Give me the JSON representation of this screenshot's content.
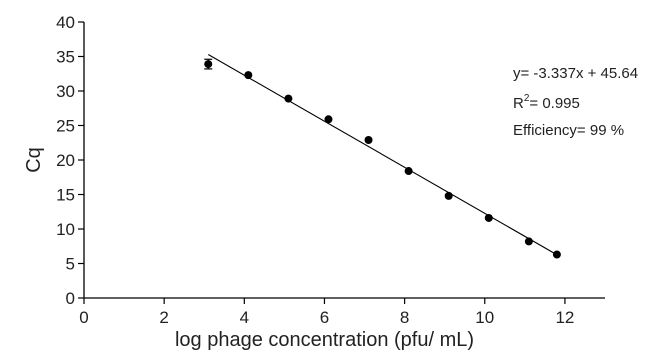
{
  "chart_data": {
    "type": "scatter",
    "title": "",
    "xlabel": "log phage concentration (pfu/ mL)",
    "ylabel": "Cq",
    "xlim": [
      0,
      13
    ],
    "ylim": [
      0,
      40
    ],
    "xticks": [
      "0",
      "2",
      "4",
      "6",
      "8",
      "10",
      "12"
    ],
    "yticks": [
      "0",
      "5",
      "10",
      "15",
      "20",
      "25",
      "30",
      "35",
      "40"
    ],
    "grid": false,
    "x": [
      3.1,
      4.1,
      5.1,
      6.1,
      7.1,
      8.1,
      9.1,
      10.1,
      11.1,
      11.8
    ],
    "y": [
      33.9,
      32.3,
      28.9,
      25.9,
      22.9,
      18.4,
      14.8,
      11.6,
      8.2,
      6.3
    ],
    "y_error": [
      0.7,
      0,
      0,
      0,
      0,
      0,
      0,
      0,
      0,
      0
    ],
    "fit_line": {
      "slope": -3.337,
      "intercept": 45.64,
      "x_range": [
        3.1,
        11.8
      ]
    },
    "annotation": {
      "equation": "y= -3.337x + 45.64",
      "r2_prefix": "R",
      "r2_superscript": "2",
      "r2_value": "= 0.995",
      "efficiency": "Efficiency= 99 %"
    }
  }
}
